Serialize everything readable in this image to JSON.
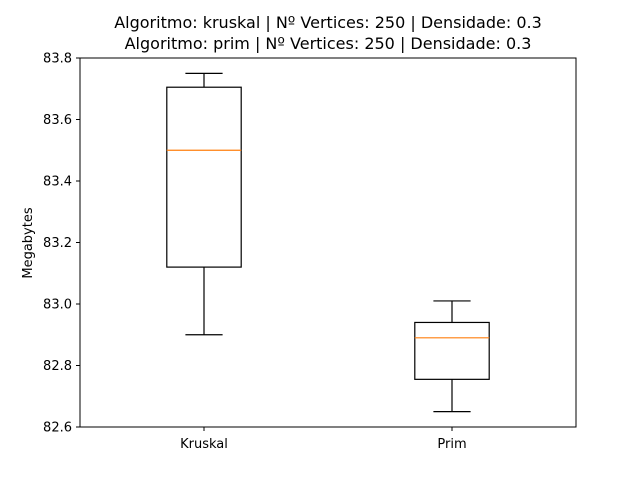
{
  "chart_data": {
    "type": "boxplot",
    "title_lines": [
      "Algoritmo: kruskal | Nº Vertices: 250 | Densidade: 0.3",
      "Algoritmo: prim | Nº Vertices: 250 | Densidade: 0.3"
    ],
    "xlabel": "",
    "ylabel": "Megabytes",
    "categories": [
      "Kruskal",
      "Prim"
    ],
    "ylim": [
      82.6,
      83.8
    ],
    "yticks": [
      82.6,
      82.8,
      83.0,
      83.2,
      83.4,
      83.6,
      83.8
    ],
    "ytick_labels": [
      "82.6",
      "82.8",
      "83.0",
      "83.2",
      "83.4",
      "83.6",
      "83.8"
    ],
    "grid": false,
    "boxes": [
      {
        "label": "Kruskal",
        "whisker_low": 82.9,
        "q1": 83.12,
        "median": 83.5,
        "q3": 83.705,
        "whisker_high": 83.75
      },
      {
        "label": "Prim",
        "whisker_low": 82.65,
        "q1": 82.755,
        "median": 82.89,
        "q3": 82.94,
        "whisker_high": 83.01
      }
    ],
    "colors": {
      "box": "#000000",
      "median": "#ff7f0e",
      "axes": "#000000"
    }
  }
}
